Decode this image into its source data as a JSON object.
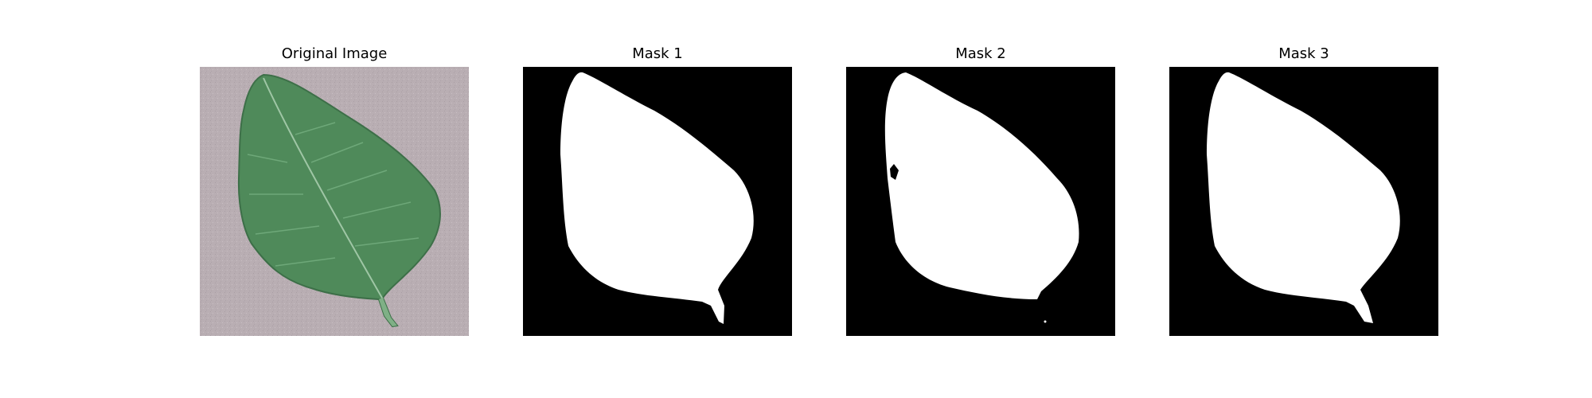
{
  "figure": {
    "panels": [
      {
        "title": "Original Image"
      },
      {
        "title": "Mask 1"
      },
      {
        "title": "Mask 2"
      },
      {
        "title": "Mask 3"
      }
    ]
  },
  "colors": {
    "background_fill": "#b8adb2",
    "leaf_green": "#4f8a5a",
    "leaf_vein": "#9fc6a5",
    "mask_background": "#000000",
    "mask_foreground": "#ffffff"
  }
}
